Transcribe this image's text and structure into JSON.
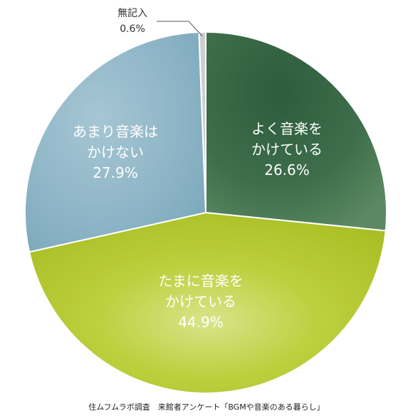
{
  "chart_data": {
    "type": "pie",
    "slices": [
      {
        "label": [
          "よく音楽を",
          "かけている"
        ],
        "value": 26.6,
        "display": "26.6%",
        "color": "#3f6f4c"
      },
      {
        "label": [
          "たまに音楽を",
          "かけている"
        ],
        "value": 44.9,
        "display": "44.9%",
        "color": "#b3c832"
      },
      {
        "label": [
          "あまり音楽は",
          "かけない"
        ],
        "value": 27.9,
        "display": "27.9%",
        "color": "#8fb7c8"
      },
      {
        "label": [
          "無記入"
        ],
        "value": 0.6,
        "display": "0.6%",
        "color": "#cfcfcf"
      }
    ],
    "start": "12 o'clock",
    "direction": "clockwise"
  },
  "source": "住ムフムラボ調査　来館者アンケート「BGMや音楽のある暮らし」"
}
